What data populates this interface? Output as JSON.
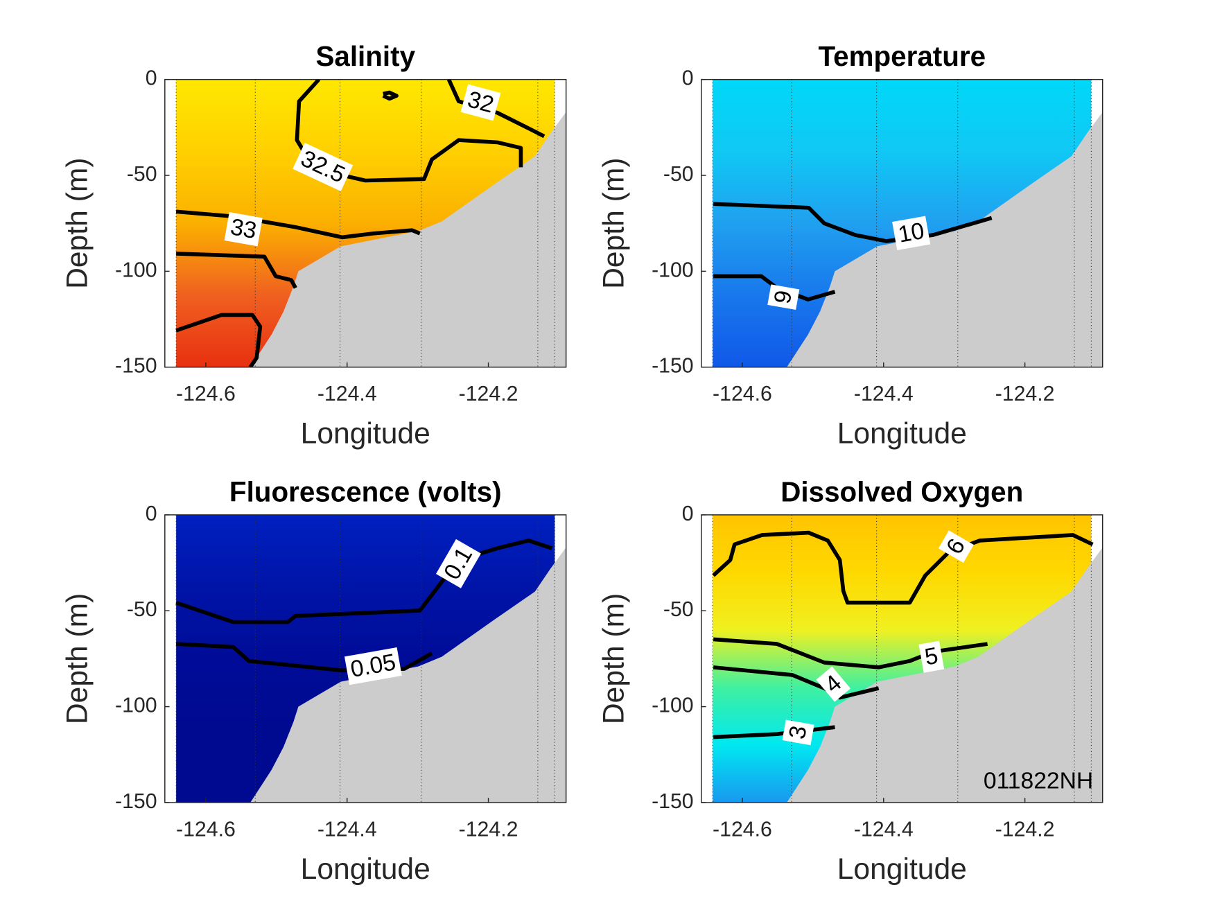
{
  "chart_data": [
    {
      "type": "contour",
      "title": "Salinity",
      "x_label": "Longitude",
      "y_label": "Depth (m)",
      "xlim": [
        -124.658,
        -124.09
      ],
      "ylim": [
        -150,
        0
      ],
      "xticks": [
        -124.6,
        -124.4,
        -124.2
      ],
      "yticks": [
        0,
        -50,
        -100,
        -150
      ],
      "colors": [
        "#ffe800",
        "#ffd000",
        "#fbb000",
        "#f06020",
        "#e83010"
      ],
      "stations": [
        -124.642,
        -124.53,
        -124.41,
        -124.295,
        -124.13,
        -124.106
      ],
      "contours": [
        {
          "level": 32,
          "x": [
            -124.256,
            -124.242,
            -124.187,
            -124.143,
            -124.121
          ],
          "y": [
            0,
            -11.4,
            -17.4,
            -25.5,
            -29.6
          ]
        },
        {
          "level": 32.5,
          "x": [
            -124.44,
            -124.468,
            -124.471,
            -124.451,
            -124.407,
            -124.374,
            -124.291,
            -124.28,
            -124.242,
            -124.187,
            -124.154,
            -124.154
          ],
          "y": [
            0,
            -11.4,
            -31.6,
            -43.8,
            -49.9,
            -52.7,
            -51.9,
            -41.7,
            -31.6,
            -32.8,
            -35.7,
            -45.8
          ]
        },
        {
          "level": 33,
          "x": [
            -124.642,
            -124.561,
            -124.473,
            -124.407,
            -124.363,
            -124.308,
            -124.297
          ],
          "y": [
            -68.9,
            -71.4,
            -77.0,
            -82.3,
            -80.3,
            -78.6,
            -80.3
          ]
        },
        {
          "x": [
            -124.349,
            -124.34,
            -124.33,
            -124.34,
            -124.349
          ],
          "y": [
            -7.5,
            -6.8,
            -8.5,
            -10,
            -8.5
          ]
        },
        {
          "x": [
            -124.642,
            -124.517,
            -124.501,
            -124.479,
            -124.473
          ],
          "y": [
            -90.8,
            -92.4,
            -102.6,
            -104.6,
            -108.7
          ]
        },
        {
          "x": [
            -124.642,
            -124.578,
            -124.534,
            -124.523,
            -124.528,
            -124.537
          ],
          "y": [
            -130.9,
            -122.8,
            -122.8,
            -128.9,
            -145.1,
            -150
          ]
        }
      ]
    },
    {
      "type": "contour",
      "title": "Temperature",
      "x_label": "Longitude",
      "y_label": "Depth (m)",
      "xlim": [
        -124.658,
        -124.09
      ],
      "ylim": [
        -150,
        0
      ],
      "xticks": [
        -124.6,
        -124.4,
        -124.2
      ],
      "yticks": [
        0,
        -50,
        -100,
        -150
      ],
      "colors": [
        "#00d8f8",
        "#10c8f4",
        "#20a0f0",
        "#1878ec",
        "#1058e8"
      ],
      "stations": [
        -124.642,
        -124.53,
        -124.41,
        -124.295,
        -124.13,
        -124.106
      ],
      "contours": [
        {
          "level": 10,
          "x": [
            -124.641,
            -124.506,
            -124.484,
            -124.44,
            -124.396,
            -124.33,
            -124.247
          ],
          "y": [
            -64.9,
            -66.9,
            -75.0,
            -81.1,
            -84.3,
            -81.1,
            -72.2
          ]
        },
        {
          "level": 9,
          "x": [
            -124.641,
            -124.573,
            -124.551,
            -124.507,
            -124.469
          ],
          "y": [
            -102.6,
            -102.6,
            -108.7,
            -114.7,
            -110.7
          ]
        }
      ]
    },
    {
      "type": "contour",
      "title": "Fluorescence (volts)",
      "x_label": "Longitude",
      "y_label": "Depth (m)",
      "xlim": [
        -124.658,
        -124.09
      ],
      "ylim": [
        -150,
        0
      ],
      "xticks": [
        -124.6,
        -124.4,
        -124.2
      ],
      "yticks": [
        0,
        -50,
        -100,
        -150
      ],
      "colors": [
        "#0020c0",
        "#0014a8",
        "#000c98",
        "#000a90",
        "#000a90"
      ],
      "stations": [
        -124.642,
        -124.53,
        -124.41,
        -124.295,
        -124.13,
        -124.106
      ],
      "contours": [
        {
          "level": 0.1,
          "x": [
            -124.642,
            -124.561,
            -124.484,
            -124.473,
            -124.297,
            -124.28,
            -124.242,
            -124.187,
            -124.143,
            -124.11
          ],
          "y": [
            -45.8,
            -55.9,
            -55.9,
            -52.7,
            -49.9,
            -41.7,
            -23.5,
            -17.4,
            -13.4,
            -17.4
          ]
        },
        {
          "level": 0.05,
          "x": [
            -124.642,
            -124.561,
            -124.539,
            -124.407,
            -124.319,
            -124.28
          ],
          "y": [
            -67.3,
            -68.9,
            -76.2,
            -81.1,
            -80.3,
            -72.2
          ]
        }
      ]
    },
    {
      "type": "contour",
      "title": "Dissolved Oxygen",
      "x_label": "Longitude",
      "y_label": "Depth (m)",
      "xlim": [
        -124.658,
        -124.09
      ],
      "ylim": [
        -150,
        0
      ],
      "xticks": [
        -124.6,
        -124.4,
        -124.2
      ],
      "yticks": [
        0,
        -50,
        -100,
        -150
      ],
      "colors": [
        "#ffc400",
        "#ffd800",
        "#f0f020",
        "#40f0a0",
        "#00e8f0",
        "#1898f0"
      ],
      "annotation": "011822NH",
      "stations": [
        -124.642,
        -124.53,
        -124.41,
        -124.295,
        -124.13,
        -124.106
      ],
      "contours": [
        {
          "level": 6,
          "x": [
            -124.641,
            -124.617,
            -124.611,
            -124.572,
            -124.506,
            -124.479,
            -124.462,
            -124.457,
            -124.451,
            -124.363,
            -124.341,
            -124.308,
            -124.264,
            -124.132,
            -124.104
          ],
          "y": [
            -31.6,
            -23.5,
            -15.4,
            -10.5,
            -9.3,
            -13.4,
            -23.5,
            -39.7,
            -45.8,
            -45.8,
            -31.6,
            -19.5,
            -13.4,
            -10.5,
            -15.4
          ]
        },
        {
          "level": 5,
          "x": [
            -124.641,
            -124.551,
            -124.484,
            -124.407,
            -124.363,
            -124.33,
            -124.253
          ],
          "y": [
            -64.9,
            -67.3,
            -77.0,
            -79.5,
            -76.2,
            -71.4,
            -67.3
          ]
        },
        {
          "level": 4,
          "x": [
            -124.641,
            -124.529,
            -124.484,
            -124.462,
            -124.407
          ],
          "y": [
            -79.5,
            -83.5,
            -90.4,
            -95.3,
            -90.4
          ]
        },
        {
          "level": 3,
          "x": [
            -124.641,
            -124.551,
            -124.469
          ],
          "y": [
            -115.9,
            -114.3,
            -110.7
          ]
        }
      ]
    }
  ],
  "bathymetry": {
    "color": "#cccccc",
    "x": [
      -124.537,
      -124.507,
      -124.49,
      -124.476,
      -124.469,
      -124.409,
      -124.299,
      -124.266,
      -124.189,
      -124.134,
      -124.112,
      -124.09
    ],
    "y": [
      -150,
      -133,
      -121,
      -108,
      -100,
      -87,
      -79,
      -74,
      -54,
      -40,
      -28,
      -17
    ]
  }
}
